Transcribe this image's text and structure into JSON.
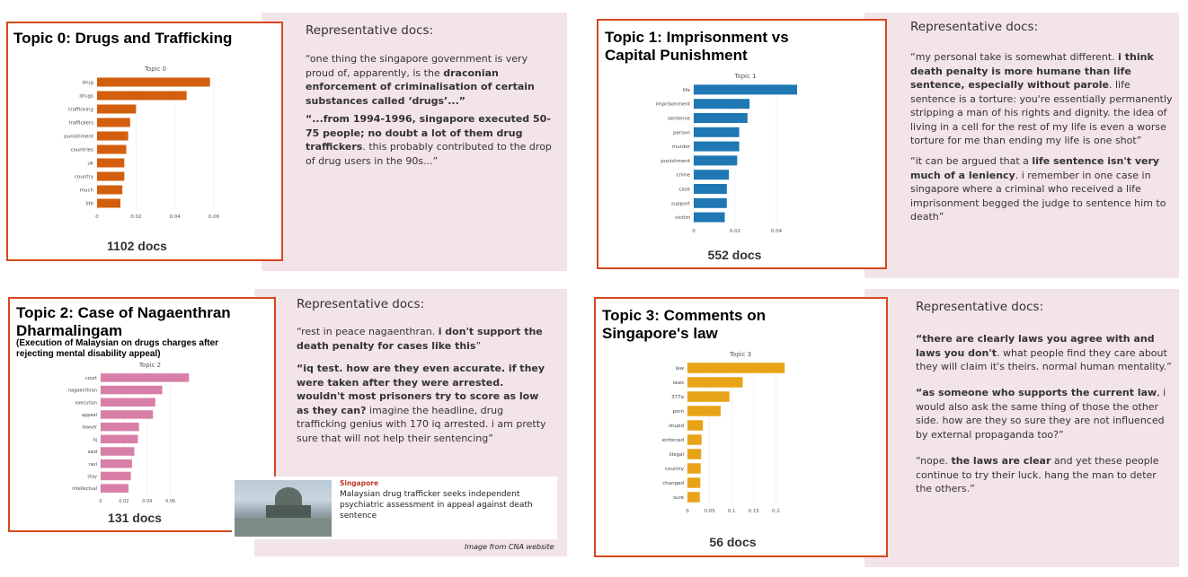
{
  "colors": {
    "border": "#d6491c",
    "panel": "#f3e4e8",
    "topic0": "#d35f0e",
    "topic1": "#1f77b4",
    "topic2": "#d87fa8",
    "topic3": "#e8a317"
  },
  "topics": [
    {
      "title": "Topic 0: Drugs and Trafficking",
      "subtitle": "",
      "docs": "1102 docs",
      "rep_heading": "Representative docs:",
      "quotes": [
        [
          {
            "t": "“one thing the singapore government is very proud of, apparently, is the ",
            "b": false
          },
          {
            "t": "draconian enforcement of criminalisation of certain substances called ‘drugs’...”",
            "b": true
          }
        ],
        [
          {
            "t": "“...from 1994-1996, singapore executed 50-75 people; no doubt a lot of them drug traffickers",
            "b": true
          },
          {
            "t": ". this probably contributed to the drop of drug users in the 90s...”",
            "b": false
          }
        ]
      ]
    },
    {
      "title": "Topic 1: Imprisonment vs Capital Punishment",
      "subtitle": "",
      "docs": "552 docs",
      "rep_heading": "Representative docs:",
      "quotes": [
        [
          {
            "t": "“my personal take is somewhat different. ",
            "b": false
          },
          {
            "t": "i think death penalty is more humane than life sentence, especially without parole",
            "b": true
          },
          {
            "t": ". life sentence is a torture: you're essentially permanently stripping a man of his rights and dignity. the idea of living in a cell for the rest of my life is even a worse torture for me than ending my life is one shot”",
            "b": false
          }
        ],
        [
          {
            "t": "“it can be argued that a ",
            "b": false
          },
          {
            "t": "life sentence isn't very much of a leniency",
            "b": true
          },
          {
            "t": ". i remember in one case in singapore where a criminal who received a life imprisonment begged the judge to sentence him to death”",
            "b": false
          }
        ]
      ]
    },
    {
      "title": "Topic 2: Case of Nagaenthran Dharmalingam",
      "subtitle": "(Execution of Malaysian on drugs charges after rejecting mental disability appeal)",
      "docs": "131 docs",
      "rep_heading": "Representative docs:",
      "quotes": [
        [
          {
            "t": "“rest in peace nagaenthran. ",
            "b": false
          },
          {
            "t": "i don't support the death penalty for cases like this",
            "b": true
          },
          {
            "t": "”",
            "b": false
          }
        ],
        [
          {
            "t": "“iq test. how are they even accurate. if they were taken after they were arrested. wouldn't most prisoners try to score as low as they can?",
            "b": true
          },
          {
            "t": " imagine the headline, drug trafficking genius with 170 iq arrested. i am pretty sure that will not help their sentencing”",
            "b": false
          }
        ]
      ]
    },
    {
      "title": "Topic 3: Comments on Singapore's law",
      "subtitle": "",
      "docs": "56 docs",
      "rep_heading": "Representative docs:",
      "quotes": [
        [
          {
            "t": "“there are clearly laws you agree with and laws you don't",
            "b": true
          },
          {
            "t": ". what people find they care about they will claim it's theirs. normal human mentality.”",
            "b": false
          }
        ],
        [
          {
            "t": "“as someone who supports the current law",
            "b": true
          },
          {
            "t": ", i would also ask the same thing of those the other side. how are they so sure they are not influenced by external propaganda too?”",
            "b": false
          }
        ],
        [
          {
            "t": "“nope. ",
            "b": false
          },
          {
            "t": "the laws are clear",
            "b": true
          },
          {
            "t": " and yet these people continue to try their luck. hang the man to deter the others.”",
            "b": false
          }
        ]
      ]
    }
  ],
  "news": {
    "section": "Singapore",
    "headline": "Malaysian drug trafficker seeks independent psychiatric assessment in appeal against death sentence",
    "credit": "Image from CNA website"
  },
  "chart_data": [
    {
      "type": "bar",
      "title": "Topic 0",
      "color": "#d35f0e",
      "categories": [
        "drug",
        "drugs",
        "trafficking",
        "traffickers",
        "punishment",
        "countries",
        "uk",
        "country",
        "much",
        "life"
      ],
      "values": [
        0.058,
        0.046,
        0.02,
        0.017,
        0.016,
        0.015,
        0.014,
        0.014,
        0.013,
        0.012
      ],
      "xlim": [
        0,
        0.06
      ],
      "xticks": [
        "0",
        "0.02",
        "0.04",
        "0.06"
      ]
    },
    {
      "type": "bar",
      "title": "Topic 1",
      "color": "#1f77b4",
      "categories": [
        "life",
        "imprisonment",
        "sentence",
        "person",
        "murder",
        "punishment",
        "crime",
        "case",
        "support",
        "victim"
      ],
      "values": [
        0.05,
        0.027,
        0.026,
        0.022,
        0.022,
        0.021,
        0.017,
        0.016,
        0.016,
        0.015
      ],
      "xlim": [
        0,
        0.05
      ],
      "xticks": [
        "0",
        "0.02",
        "0.04"
      ]
    },
    {
      "type": "bar",
      "title": "Topic 2",
      "color": "#d87fa8",
      "categories": [
        "court",
        "nagaenthran",
        "execution",
        "appeal",
        "lawyer",
        "iq",
        "said",
        "ravi",
        "stay",
        "intellectual"
      ],
      "values": [
        0.076,
        0.053,
        0.047,
        0.045,
        0.033,
        0.032,
        0.029,
        0.027,
        0.026,
        0.024
      ],
      "xlim": [
        0,
        0.085
      ],
      "xticks": [
        "0",
        "0.02",
        "0.04",
        "0.06"
      ]
    },
    {
      "type": "bar",
      "title": "Topic 3",
      "color": "#e8a317",
      "categories": [
        "law",
        "laws",
        "377a",
        "porn",
        "stupid",
        "enforced",
        "illegal",
        "country",
        "changed",
        "sure"
      ],
      "values": [
        0.22,
        0.125,
        0.095,
        0.075,
        0.035,
        0.032,
        0.031,
        0.03,
        0.029,
        0.028
      ],
      "xlim": [
        0,
        0.24
      ],
      "xticks": [
        "0",
        "0.05",
        "0.1",
        "0.15",
        "0.2"
      ]
    }
  ]
}
